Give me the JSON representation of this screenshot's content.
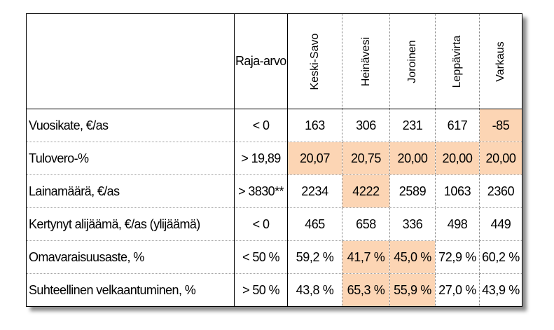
{
  "table": {
    "limit_header": "Raja-arvo",
    "municipalities": [
      "Keski-Savo",
      "Heinävesi",
      "Joroinen",
      "Leppävirta",
      "Varkaus"
    ],
    "highlight_color": "#fcd5b4",
    "rows": [
      {
        "label": "Vuosikate, €/as",
        "limit": "< 0",
        "values": [
          "163",
          "306",
          "231",
          "617",
          "-85"
        ],
        "highlight": [
          false,
          false,
          false,
          false,
          true
        ]
      },
      {
        "label": "Tulovero-%",
        "limit": "> 19,89",
        "values": [
          "20,07",
          "20,75",
          "20,00",
          "20,00",
          "20,00"
        ],
        "highlight": [
          true,
          true,
          true,
          true,
          true
        ]
      },
      {
        "label": "Lainamäärä, €/as",
        "limit": "> 3830**",
        "values": [
          "2234",
          "4222",
          "2589",
          "1063",
          "2360"
        ],
        "highlight": [
          false,
          true,
          false,
          false,
          false
        ]
      },
      {
        "label": "Kertynyt alijäämä, €/as (ylijäämä)",
        "limit": "< 0",
        "values": [
          "465",
          "658",
          "336",
          "498",
          "449"
        ],
        "highlight": [
          false,
          false,
          false,
          false,
          false
        ]
      },
      {
        "label": "Omavaraisuusaste, %",
        "limit": "< 50 %",
        "values": [
          "59,2 %",
          "41,7 %",
          "45,0 %",
          "72,9 %",
          "60,2 %"
        ],
        "highlight": [
          false,
          true,
          true,
          false,
          false
        ]
      },
      {
        "label": "Suhteellinen velkaantuminen, %",
        "limit": "> 50 %",
        "values": [
          "43,8 %",
          "65,3 %",
          "55,9 %",
          "27,0 %",
          "43,9 %"
        ],
        "highlight": [
          false,
          true,
          true,
          false,
          false
        ]
      }
    ]
  }
}
